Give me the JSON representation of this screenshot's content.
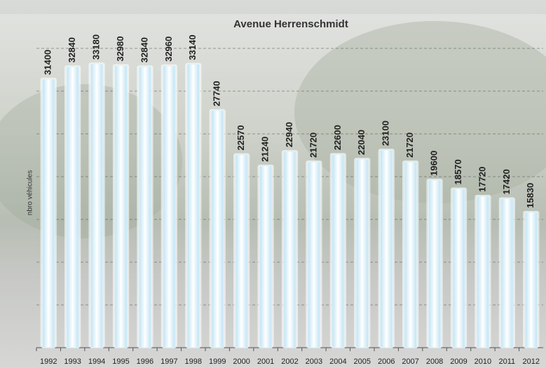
{
  "chart_data": {
    "type": "bar",
    "title": "Avenue Herrenschmidt",
    "y_label": "nbro véhicules",
    "categories": [
      "1992",
      "1993",
      "1994",
      "1995",
      "1996",
      "1997",
      "1998",
      "1999",
      "2000",
      "2001",
      "2002",
      "2003",
      "2004",
      "2005",
      "2006",
      "2007",
      "2008",
      "2009",
      "2010",
      "2011",
      "2012"
    ],
    "values": [
      31400,
      32840,
      33180,
      32980,
      32840,
      32960,
      33140,
      27740,
      22570,
      21240,
      22940,
      21720,
      22600,
      22040,
      23100,
      21720,
      19600,
      18570,
      17720,
      17420,
      15830
    ],
    "color": "#dff3fb",
    "ylim": [
      0,
      35000
    ],
    "yticks": [
      0,
      5000,
      10000,
      15000,
      20000,
      25000,
      30000,
      35000
    ],
    "grid": true
  }
}
